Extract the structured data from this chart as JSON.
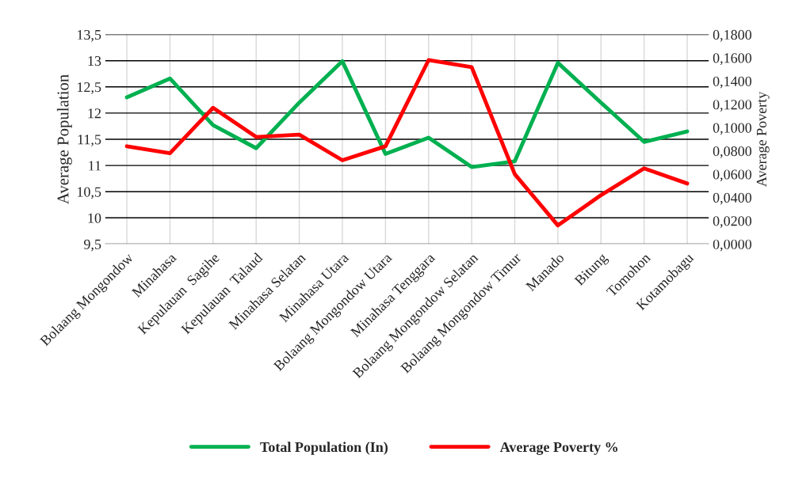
{
  "chart_data": {
    "type": "line",
    "categories": [
      "Bolaang Mongondow",
      "Minahasa",
      "Kepulauan  Sagihe",
      "Kepulauan  Talaud",
      "Minahasa Selatan",
      "Minahasa Utara",
      "Bolaang Mongondow Utara",
      "Minahasa Tenggara",
      "Bolaang Mongondow Selatan",
      "Bolaang Mongondow Timur",
      "Manado",
      "Bitung",
      "Tomohon",
      "Kotamobagu"
    ],
    "series": [
      {
        "name": "Total Population (In)",
        "color": "#00b050",
        "values": [
          12.3,
          12.66,
          11.77,
          11.33,
          12.2,
          12.99,
          11.22,
          11.53,
          10.97,
          11.08,
          12.96,
          12.2,
          11.45,
          11.65
        ]
      },
      {
        "name": "Average Poverty %",
        "color": "#ff0000",
        "axis": "y2",
        "values": [
          0.084,
          0.078,
          0.117,
          0.092,
          0.094,
          0.072,
          0.084,
          0.158,
          0.152,
          0.06,
          0.016,
          0.042,
          0.065,
          0.052
        ]
      }
    ],
    "ylabel": "Average Population",
    "y2label": "Average Poverty",
    "ylim": [
      9.5,
      13.5
    ],
    "yticks": [
      {
        "value": 9.5,
        "label": "9,5"
      },
      10,
      {
        "value": 10.5,
        "label": "10,5"
      },
      11,
      {
        "value": 11.5,
        "label": "11,5"
      },
      12,
      {
        "value": 12.5,
        "label": "12,5"
      },
      13,
      {
        "value": 13.5,
        "label": "13,5"
      }
    ],
    "y2lim": [
      0,
      0.18
    ],
    "y2ticks": [
      {
        "value": 0,
        "label": "0,0000"
      },
      {
        "value": 0.02,
        "label": "0,0200"
      },
      {
        "value": 0.04,
        "label": "0,0400"
      },
      {
        "value": 0.06,
        "label": "0,0600"
      },
      {
        "value": 0.08,
        "label": "0,0800"
      },
      {
        "value": 0.1,
        "label": "0,1000"
      },
      {
        "value": 0.12,
        "label": "0,1200"
      },
      {
        "value": 0.14,
        "label": "0,1400"
      },
      {
        "value": 0.16,
        "label": "0,1600"
      },
      {
        "value": 0.18,
        "label": "0,1800"
      }
    ],
    "grid": true,
    "legend": "bottom",
    "marker": "none",
    "line_style": "solid"
  }
}
